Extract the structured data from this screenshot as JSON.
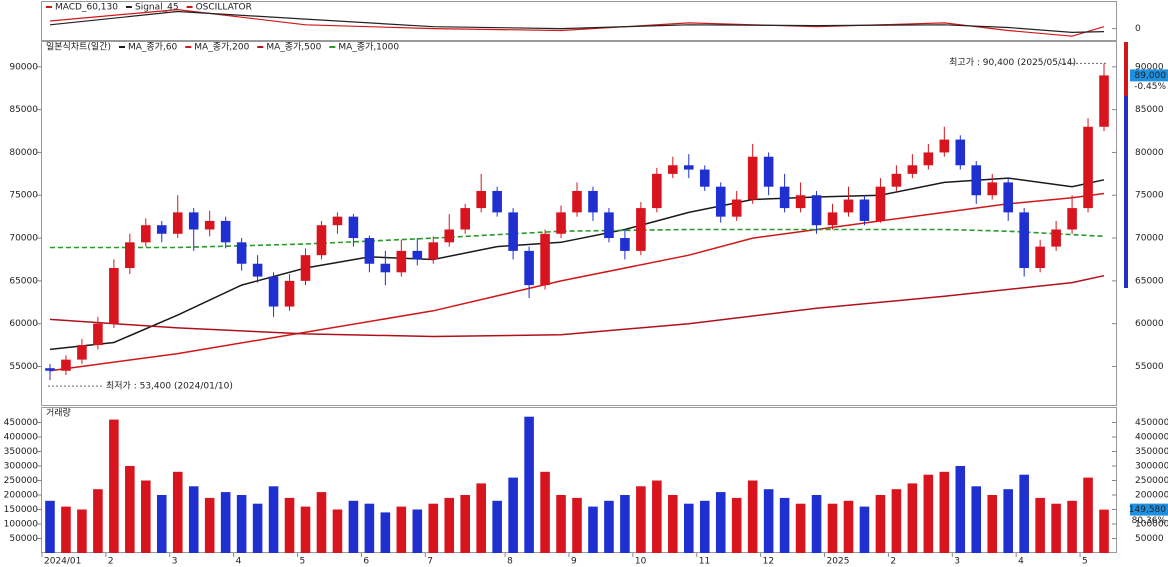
{
  "chart_data": [
    {
      "type": "line",
      "oscillator_label": "OSCILLATOR",
      "ylim": [
        -3,
        7
      ],
      "yticks": [
        0
      ],
      "series": [
        {
          "name": "MACD_60,130",
          "color": "#d01818",
          "x": [
            0,
            8,
            16,
            24,
            32,
            40,
            48,
            56,
            60,
            64,
            66
          ],
          "values": [
            2,
            5,
            1,
            0,
            -0.5,
            1.5,
            0.5,
            1.5,
            -0.5,
            -2,
            0.5
          ]
        },
        {
          "name": "Signal_45",
          "color": "#222222",
          "x": [
            0,
            8,
            16,
            24,
            32,
            40,
            48,
            56,
            60,
            64,
            66
          ],
          "values": [
            1,
            4.5,
            2.5,
            0.5,
            0,
            1,
            0.8,
            1,
            0.3,
            -1,
            -0.8
          ]
        }
      ]
    },
    {
      "type": "candlestick",
      "title": "일본식차트(일간)",
      "up_color": "#d8141f",
      "down_color": "#1f2fd0",
      "ylim": [
        50500,
        92900
      ],
      "yticks": [
        55000,
        60000,
        65000,
        70000,
        75000,
        80000,
        85000,
        90000
      ],
      "ohlc": [
        [
          54800,
          55300,
          53400,
          54500
        ],
        [
          54500,
          56300,
          54000,
          55800
        ],
        [
          55800,
          58200,
          55300,
          57500
        ],
        [
          57500,
          60800,
          57000,
          60000
        ],
        [
          60000,
          67500,
          59500,
          66500
        ],
        [
          66500,
          70500,
          65800,
          69500
        ],
        [
          69500,
          72300,
          69000,
          71500
        ],
        [
          71500,
          72000,
          69500,
          70500
        ],
        [
          70500,
          75000,
          70000,
          73000
        ],
        [
          73000,
          73500,
          68500,
          71000
        ],
        [
          71000,
          73200,
          70200,
          72000
        ],
        [
          72000,
          72500,
          68800,
          69500
        ],
        [
          69500,
          70000,
          66200,
          67000
        ],
        [
          67000,
          68000,
          64800,
          65500
        ],
        [
          65500,
          66000,
          60800,
          62000
        ],
        [
          62000,
          65800,
          61500,
          65000
        ],
        [
          65000,
          68800,
          64500,
          68000
        ],
        [
          68000,
          72000,
          67500,
          71500
        ],
        [
          71500,
          73000,
          70500,
          72500
        ],
        [
          72500,
          72800,
          69000,
          70000
        ],
        [
          70000,
          70300,
          66000,
          67000
        ],
        [
          67000,
          68500,
          64500,
          66000
        ],
        [
          66000,
          69800,
          65500,
          68500
        ],
        [
          68500,
          70000,
          66800,
          67500
        ],
        [
          67500,
          70200,
          67000,
          69500
        ],
        [
          69500,
          72800,
          69000,
          71000
        ],
        [
          71000,
          74000,
          70500,
          73500
        ],
        [
          73500,
          77500,
          73000,
          75500
        ],
        [
          75500,
          76000,
          72500,
          73000
        ],
        [
          73000,
          73500,
          67500,
          68500
        ],
        [
          68500,
          69000,
          63000,
          64500
        ],
        [
          64500,
          71000,
          64000,
          70500
        ],
        [
          70500,
          73800,
          70000,
          73000
        ],
        [
          73000,
          76500,
          72500,
          75500
        ],
        [
          75500,
          76000,
          72000,
          73000
        ],
        [
          73000,
          73500,
          69500,
          70000
        ],
        [
          70000,
          71000,
          67500,
          68500
        ],
        [
          68500,
          74200,
          68000,
          73500
        ],
        [
          73500,
          78200,
          73000,
          77500
        ],
        [
          77500,
          79500,
          77000,
          78500
        ],
        [
          78500,
          79800,
          77000,
          78000
        ],
        [
          78000,
          78500,
          75500,
          76000
        ],
        [
          76000,
          76500,
          71800,
          72500
        ],
        [
          72500,
          75500,
          72000,
          74500
        ],
        [
          74500,
          81000,
          74000,
          79500
        ],
        [
          79500,
          80000,
          75000,
          76000
        ],
        [
          76000,
          77500,
          73000,
          73500
        ],
        [
          73500,
          76500,
          73000,
          75000
        ],
        [
          75000,
          75500,
          70500,
          71500
        ],
        [
          71500,
          74000,
          71000,
          73000
        ],
        [
          73000,
          76000,
          72500,
          74500
        ],
        [
          74500,
          75000,
          71500,
          72000
        ],
        [
          72000,
          77000,
          71800,
          76000
        ],
        [
          76000,
          78500,
          75500,
          77500
        ],
        [
          77500,
          79800,
          77000,
          78500
        ],
        [
          78500,
          81000,
          78000,
          80000
        ],
        [
          80000,
          83000,
          79500,
          81500
        ],
        [
          81500,
          82000,
          78000,
          78500
        ],
        [
          78500,
          79000,
          74000,
          75000
        ],
        [
          75000,
          77500,
          74500,
          76500
        ],
        [
          76500,
          77000,
          72000,
          73000
        ],
        [
          73000,
          73500,
          65500,
          66500
        ],
        [
          66500,
          69800,
          66000,
          69000
        ],
        [
          69000,
          72000,
          68500,
          71000
        ],
        [
          71000,
          75000,
          70500,
          73500
        ],
        [
          73500,
          84000,
          73000,
          83000
        ],
        [
          83000,
          90400,
          82500,
          89000
        ]
      ],
      "ma": [
        {
          "name": "MA_종가,60",
          "color": "#1a1a1a",
          "x": [
            0,
            4,
            8,
            12,
            16,
            20,
            24,
            28,
            32,
            36,
            40,
            44,
            48,
            52,
            56,
            60,
            64,
            66
          ],
          "values": [
            57000,
            57800,
            61000,
            64500,
            66500,
            67800,
            67500,
            69000,
            69500,
            71000,
            73000,
            74500,
            74800,
            75000,
            76500,
            77000,
            76000,
            76800
          ]
        },
        {
          "name": "MA_종가,200",
          "color": "#d01818",
          "x": [
            0,
            8,
            16,
            24,
            32,
            40,
            44,
            48,
            52,
            56,
            60,
            64,
            66
          ],
          "values": [
            54500,
            56500,
            59000,
            61500,
            65000,
            68000,
            70000,
            71000,
            72000,
            73000,
            74000,
            74700,
            75200
          ]
        },
        {
          "name": "MA_종가,500",
          "color": "#b0101c",
          "x": [
            0,
            8,
            16,
            24,
            32,
            40,
            48,
            56,
            64,
            66
          ],
          "values": [
            60500,
            59500,
            58800,
            58500,
            58700,
            60000,
            61800,
            63200,
            64800,
            65600
          ]
        },
        {
          "name": "MA_종가,1000",
          "color": "#2a9a2a",
          "dashed": true,
          "x": [
            0,
            8,
            16,
            24,
            32,
            40,
            48,
            56,
            60,
            64,
            66
          ],
          "values": [
            68900,
            68900,
            69300,
            70000,
            70800,
            71000,
            71000,
            71000,
            70800,
            70400,
            70200
          ]
        }
      ],
      "high": {
        "value": 90400,
        "label": "최고가 : 90,400 (2025/05/14)"
      },
      "low": {
        "value": 53400,
        "label": "최저가 : 53,400 (2024/01/10)"
      },
      "last": {
        "value": 89000,
        "label": "89,000"
      },
      "change_label": "-0.45%"
    },
    {
      "type": "bar",
      "title": "거래량",
      "ylim": [
        0,
        500000
      ],
      "yticks": [
        50000,
        100000,
        150000,
        200000,
        250000,
        300000,
        350000,
        400000,
        450000
      ],
      "categories": [
        "2024/01",
        null,
        null,
        null,
        "2",
        null,
        null,
        null,
        "3",
        null,
        null,
        null,
        "4",
        null,
        null,
        null,
        "5",
        null,
        null,
        null,
        "6",
        null,
        null,
        null,
        "7",
        null,
        null,
        null,
        null,
        "8",
        null,
        null,
        null,
        "9",
        null,
        null,
        null,
        "10",
        null,
        null,
        null,
        "11",
        null,
        null,
        null,
        "12",
        null,
        null,
        null,
        "2025",
        null,
        null,
        null,
        "2",
        null,
        null,
        null,
        "3",
        null,
        null,
        null,
        "4",
        null,
        null,
        null,
        "5",
        null
      ],
      "values": [
        180000,
        160000,
        150000,
        220000,
        460000,
        300000,
        250000,
        200000,
        280000,
        230000,
        190000,
        210000,
        200000,
        170000,
        230000,
        190000,
        160000,
        210000,
        150000,
        180000,
        170000,
        140000,
        160000,
        150000,
        170000,
        190000,
        200000,
        240000,
        180000,
        260000,
        470000,
        280000,
        200000,
        190000,
        160000,
        180000,
        200000,
        230000,
        250000,
        200000,
        170000,
        180000,
        210000,
        190000,
        250000,
        220000,
        190000,
        170000,
        200000,
        170000,
        180000,
        160000,
        200000,
        220000,
        240000,
        270000,
        280000,
        300000,
        230000,
        200000,
        220000,
        270000,
        190000,
        170000,
        180000,
        260000,
        149580
      ],
      "last": {
        "value": 149580,
        "label": "149,580"
      },
      "ratio_label": "80.36%"
    }
  ]
}
